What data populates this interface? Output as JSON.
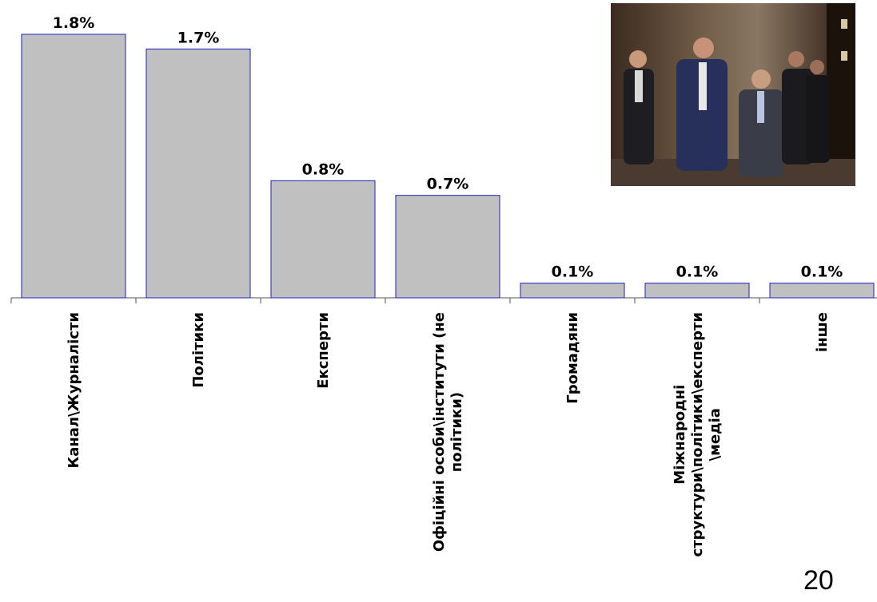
{
  "chart_data": {
    "type": "bar",
    "categories": [
      "Канал\\Журналісти",
      "Політики",
      "Експерти",
      "Офіційні особи\\інститути (не політики)",
      "Громадяни",
      "Міжнародні структури\\політики\\експерти \\медіа",
      "інше"
    ],
    "category_lines": [
      [
        "Канал\\Журналісти"
      ],
      [
        "Політики"
      ],
      [
        "Експерти"
      ],
      [
        "Офіційні особи\\інститути (не",
        "політики)"
      ],
      [
        "Громадяни"
      ],
      [
        "Міжнародні",
        "структури\\політики\\експерти",
        "\\медіа"
      ],
      [
        "інше"
      ]
    ],
    "values": [
      1.8,
      1.7,
      0.8,
      0.7,
      0.1,
      0.1,
      0.1
    ],
    "value_labels": [
      "1.8%",
      "1.7%",
      "0.8%",
      "0.7%",
      "0.1%",
      "0.1%",
      "0.1%"
    ],
    "ylim": [
      0,
      1.8
    ],
    "grid": false,
    "legend": "none",
    "colors": {
      "bar_fill": "#c0c0c0",
      "bar_stroke": "#1f1fbf"
    }
  },
  "photo": {
    "icon": "photo-of-officials-walking"
  },
  "page_number": "20"
}
